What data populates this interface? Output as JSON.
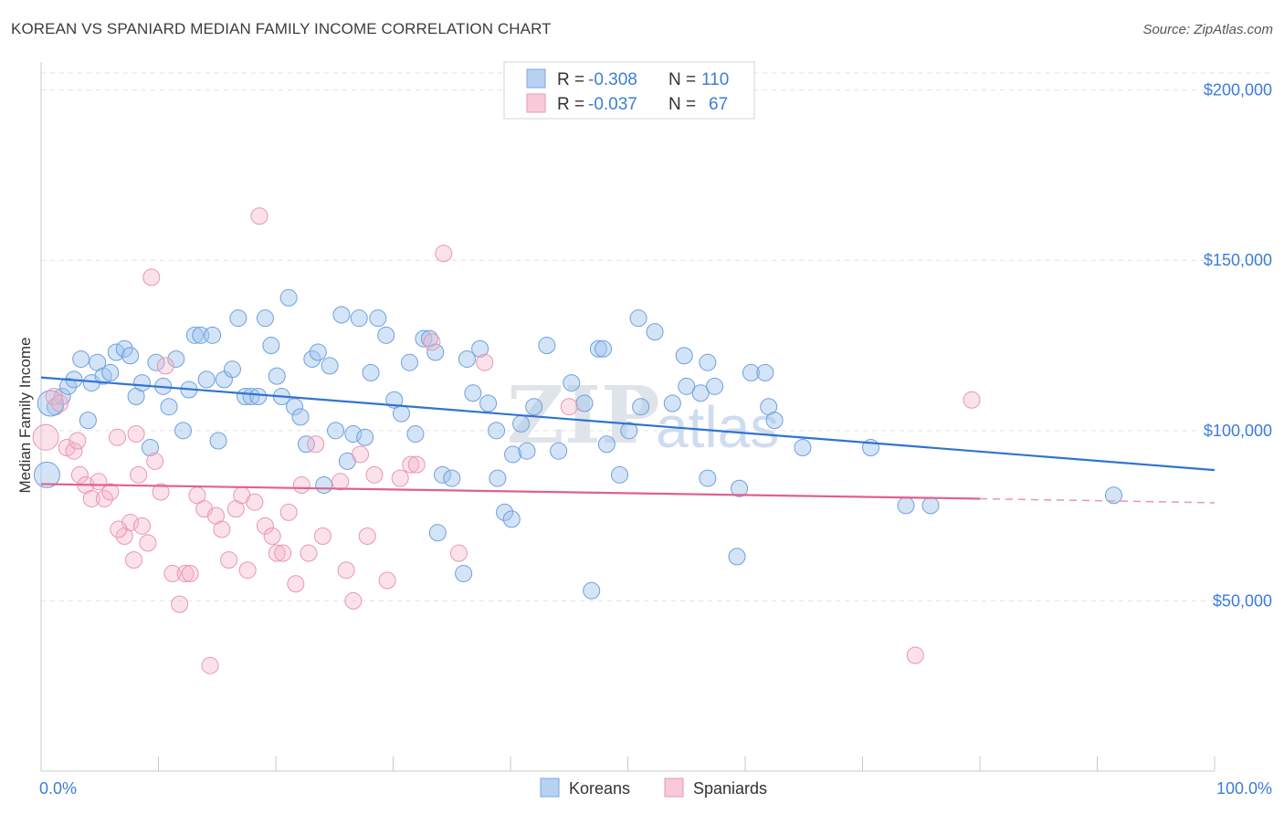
{
  "title": "KOREAN VS SPANIARD MEDIAN FAMILY INCOME CORRELATION CHART",
  "source": "Source: ZipAtlas.com",
  "watermark": {
    "zip": "ZIP",
    "atlas": "atlas"
  },
  "legend_top": {
    "r_label": "R =",
    "n_label": "N =",
    "rows": [
      {
        "r": "-0.308",
        "n": "110",
        "color": "#9ec3ee"
      },
      {
        "r": "-0.037",
        "n": "67",
        "color": "#f4b6c9"
      }
    ]
  },
  "legend_bottom": [
    {
      "label": "Koreans",
      "color": "#9ec3ee"
    },
    {
      "label": "Spaniards",
      "color": "#f4b6c9"
    }
  ],
  "colors": {
    "blue": "#3b7dd8",
    "blue_fill": "#a9c8ef",
    "pink": "#e0608f",
    "pink_fill": "#f5bdd0",
    "grid": "#dcdcdc",
    "axis_label": "#3b7dd8"
  },
  "chart_data": {
    "type": "scatter",
    "xlabel": "",
    "ylabel": "Median Family Income",
    "x_tick_labels": [
      "0.0%",
      "100.0%"
    ],
    "y_tick_labels": [
      "$50,000",
      "$100,000",
      "$150,000",
      "$200,000"
    ],
    "y_ticks": [
      50000,
      100000,
      150000,
      200000
    ],
    "xlim": [
      0,
      100
    ],
    "ylim": [
      0,
      205000
    ],
    "grid": true,
    "legend": "top-center",
    "series": [
      {
        "name": "Koreans",
        "color": "#3b7dd8",
        "trend": {
          "x": [
            0,
            100
          ],
          "y": [
            115600,
            88400
          ]
        },
        "points": [
          [
            0.5,
            87000
          ],
          [
            1.2,
            107000
          ],
          [
            1.8,
            110000
          ],
          [
            2.3,
            113000
          ],
          [
            2.8,
            115000
          ],
          [
            3.4,
            121000
          ],
          [
            4.0,
            103000
          ],
          [
            4.3,
            114000
          ],
          [
            4.8,
            120000
          ],
          [
            5.3,
            116000
          ],
          [
            5.9,
            117000
          ],
          [
            6.4,
            123000
          ],
          [
            7.1,
            124000
          ],
          [
            7.6,
            122000
          ],
          [
            8.1,
            110000
          ],
          [
            8.6,
            114000
          ],
          [
            9.3,
            95000
          ],
          [
            9.8,
            120000
          ],
          [
            10.4,
            113000
          ],
          [
            10.9,
            107000
          ],
          [
            11.5,
            121000
          ],
          [
            12.1,
            100000
          ],
          [
            12.6,
            112000
          ],
          [
            13.1,
            128000
          ],
          [
            13.6,
            128000
          ],
          [
            14.1,
            115000
          ],
          [
            14.6,
            128000
          ],
          [
            15.1,
            97000
          ],
          [
            15.6,
            115000
          ],
          [
            16.3,
            118000
          ],
          [
            16.8,
            133000
          ],
          [
            17.4,
            110000
          ],
          [
            17.9,
            110000
          ],
          [
            18.5,
            110000
          ],
          [
            19.1,
            133000
          ],
          [
            19.6,
            125000
          ],
          [
            20.1,
            116000
          ],
          [
            20.5,
            110000
          ],
          [
            21.1,
            139000
          ],
          [
            21.6,
            107000
          ],
          [
            22.1,
            104000
          ],
          [
            22.6,
            96000
          ],
          [
            23.1,
            121000
          ],
          [
            23.6,
            123000
          ],
          [
            24.1,
            84000
          ],
          [
            24.6,
            119000
          ],
          [
            25.1,
            100000
          ],
          [
            25.6,
            134000
          ],
          [
            26.1,
            91000
          ],
          [
            26.6,
            99000
          ],
          [
            27.1,
            133000
          ],
          [
            27.6,
            98000
          ],
          [
            28.1,
            117000
          ],
          [
            28.7,
            133000
          ],
          [
            29.4,
            128000
          ],
          [
            30.1,
            109000
          ],
          [
            30.7,
            105000
          ],
          [
            31.4,
            120000
          ],
          [
            31.9,
            99000
          ],
          [
            32.6,
            127000
          ],
          [
            33.1,
            127000
          ],
          [
            33.6,
            123000
          ],
          [
            34.2,
            87000
          ],
          [
            35.0,
            86000
          ],
          [
            36.3,
            121000
          ],
          [
            36.8,
            111000
          ],
          [
            37.4,
            124000
          ],
          [
            38.1,
            108000
          ],
          [
            38.8,
            100000
          ],
          [
            38.9,
            86000
          ],
          [
            39.5,
            76000
          ],
          [
            40.1,
            74000
          ],
          [
            40.2,
            93000
          ],
          [
            40.9,
            102000
          ],
          [
            41.4,
            94000
          ],
          [
            42.0,
            107000
          ],
          [
            43.1,
            125000
          ],
          [
            44.1,
            94000
          ],
          [
            45.2,
            114000
          ],
          [
            46.3,
            108000
          ],
          [
            46.9,
            53000
          ],
          [
            47.5,
            124000
          ],
          [
            48.2,
            96000
          ],
          [
            49.3,
            87000
          ],
          [
            50.1,
            100000
          ],
          [
            50.9,
            133000
          ],
          [
            51.1,
            107000
          ],
          [
            52.3,
            129000
          ],
          [
            53.8,
            108000
          ],
          [
            54.8,
            122000
          ],
          [
            55.0,
            113000
          ],
          [
            56.2,
            111000
          ],
          [
            56.8,
            120000
          ],
          [
            56.8,
            86000
          ],
          [
            57.4,
            113000
          ],
          [
            59.3,
            63000
          ],
          [
            59.5,
            83000
          ],
          [
            60.5,
            117000
          ],
          [
            61.7,
            117000
          ],
          [
            62.0,
            107000
          ],
          [
            62.5,
            103000
          ],
          [
            64.9,
            95000
          ],
          [
            70.7,
            95000
          ],
          [
            73.7,
            78000
          ],
          [
            75.8,
            78000
          ],
          [
            91.4,
            81000
          ],
          [
            0.8,
            108000
          ],
          [
            36.0,
            58000
          ],
          [
            33.8,
            70000
          ],
          [
            47.9,
            124000
          ]
        ]
      },
      {
        "name": "Spaniards",
        "color": "#e0608f",
        "trend": {
          "x": [
            0,
            80
          ],
          "y": [
            84300,
            80000
          ]
        },
        "trend_dashed": {
          "x": [
            80,
            100
          ],
          "y": [
            80000,
            78800
          ]
        },
        "points": [
          [
            0.4,
            98000
          ],
          [
            1.1,
            110000
          ],
          [
            1.6,
            108000
          ],
          [
            2.2,
            95000
          ],
          [
            2.8,
            94000
          ],
          [
            3.3,
            87000
          ],
          [
            3.8,
            84000
          ],
          [
            4.3,
            80000
          ],
          [
            4.9,
            85000
          ],
          [
            5.4,
            80000
          ],
          [
            5.9,
            82000
          ],
          [
            6.5,
            98000
          ],
          [
            7.1,
            69000
          ],
          [
            7.6,
            73000
          ],
          [
            8.1,
            99000
          ],
          [
            8.6,
            72000
          ],
          [
            9.1,
            67000
          ],
          [
            9.7,
            91000
          ],
          [
            10.2,
            82000
          ],
          [
            10.6,
            119000
          ],
          [
            11.2,
            58000
          ],
          [
            11.8,
            49000
          ],
          [
            12.3,
            58000
          ],
          [
            12.7,
            58000
          ],
          [
            13.3,
            81000
          ],
          [
            13.9,
            77000
          ],
          [
            14.4,
            31000
          ],
          [
            14.9,
            75000
          ],
          [
            15.4,
            71000
          ],
          [
            16.0,
            62000
          ],
          [
            16.6,
            77000
          ],
          [
            17.1,
            81000
          ],
          [
            17.6,
            59000
          ],
          [
            18.2,
            79000
          ],
          [
            18.6,
            163000
          ],
          [
            19.1,
            72000
          ],
          [
            19.7,
            69000
          ],
          [
            20.1,
            64000
          ],
          [
            20.6,
            64000
          ],
          [
            21.1,
            76000
          ],
          [
            21.7,
            55000
          ],
          [
            22.2,
            84000
          ],
          [
            22.8,
            64000
          ],
          [
            23.4,
            96000
          ],
          [
            24.0,
            69000
          ],
          [
            25.5,
            85000
          ],
          [
            26.0,
            59000
          ],
          [
            26.6,
            50000
          ],
          [
            27.2,
            93000
          ],
          [
            27.8,
            69000
          ],
          [
            28.4,
            87000
          ],
          [
            29.5,
            56000
          ],
          [
            30.6,
            86000
          ],
          [
            31.5,
            90000
          ],
          [
            32.0,
            90000
          ],
          [
            33.3,
            126000
          ],
          [
            34.3,
            152000
          ],
          [
            35.6,
            64000
          ],
          [
            37.8,
            120000
          ],
          [
            45.0,
            107000
          ],
          [
            9.4,
            145000
          ],
          [
            6.6,
            71000
          ],
          [
            7.9,
            62000
          ],
          [
            8.3,
            87000
          ],
          [
            74.5,
            34000
          ],
          [
            79.3,
            109000
          ],
          [
            3.1,
            97000
          ]
        ]
      }
    ]
  }
}
